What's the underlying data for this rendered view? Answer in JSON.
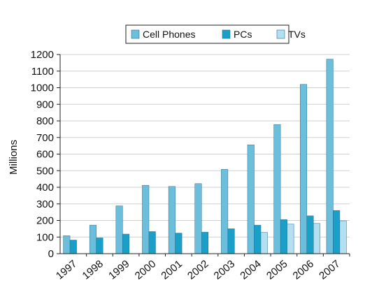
{
  "chart_data": {
    "type": "bar",
    "title": "",
    "xlabel": "",
    "ylabel": "Millions",
    "ylim": [
      0,
      1200
    ],
    "ytick_step": 100,
    "grid": true,
    "legend_position": "top-center",
    "categories": [
      "1997",
      "1998",
      "1999",
      "2000",
      "2001",
      "2002",
      "2003",
      "2004",
      "2005",
      "2006",
      "2007"
    ],
    "series": [
      {
        "name": "Cell Phones",
        "color": "#6cbfdc",
        "values": [
          108,
          172,
          288,
          412,
          405,
          422,
          508,
          656,
          778,
          1020,
          1172
        ]
      },
      {
        "name": "PCs",
        "color": "#1a9fc9",
        "values": [
          82,
          95,
          118,
          133,
          124,
          130,
          150,
          172,
          205,
          228,
          260
        ]
      },
      {
        "name": "TVs",
        "color": "#b3dff0",
        "values": [
          null,
          null,
          null,
          null,
          null,
          null,
          null,
          128,
          178,
          182,
          198
        ]
      }
    ]
  }
}
